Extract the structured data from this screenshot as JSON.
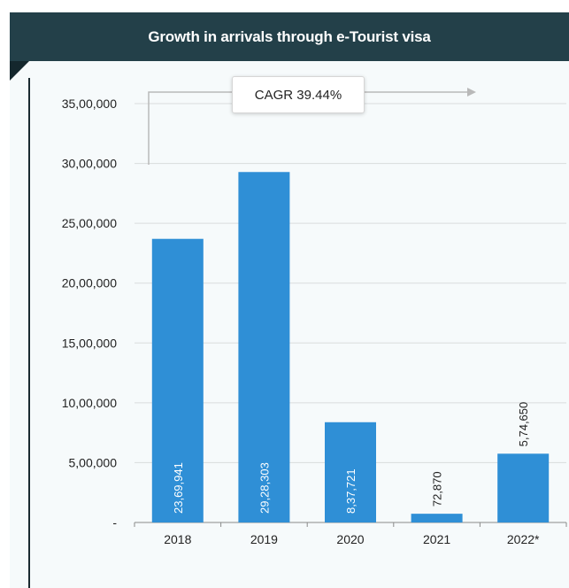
{
  "header": {
    "title": "Growth in arrivals through e-Tourist visa"
  },
  "cagr": {
    "label": "CAGR 39.44%"
  },
  "colors": {
    "bar": "#2f8fd6",
    "header_bg": "#234049",
    "panel_bg": "#f6fafb",
    "grid": "#d9dcdd"
  },
  "chart_data": {
    "type": "bar",
    "title": "Growth in arrivals through e-Tourist visa",
    "categories": [
      "2018",
      "2019",
      "2020",
      "2021",
      "2022*"
    ],
    "values": [
      2369941,
      2928303,
      837721,
      72870,
      574650
    ],
    "value_labels": [
      "23,69,941",
      "29,28,303",
      "8,37,721",
      "72,870",
      "5,74,650"
    ],
    "yticks": [
      0,
      500000,
      1000000,
      1500000,
      2000000,
      2500000,
      3000000,
      3500000
    ],
    "ytick_labels": [
      "-",
      "5,00,000",
      "10,00,000",
      "15,00,000",
      "20,00,000",
      "25,00,000",
      "30,00,000",
      "35,00,000"
    ],
    "ylim": [
      0,
      3500000
    ],
    "grid": true,
    "xlabel": "",
    "ylabel": ""
  }
}
